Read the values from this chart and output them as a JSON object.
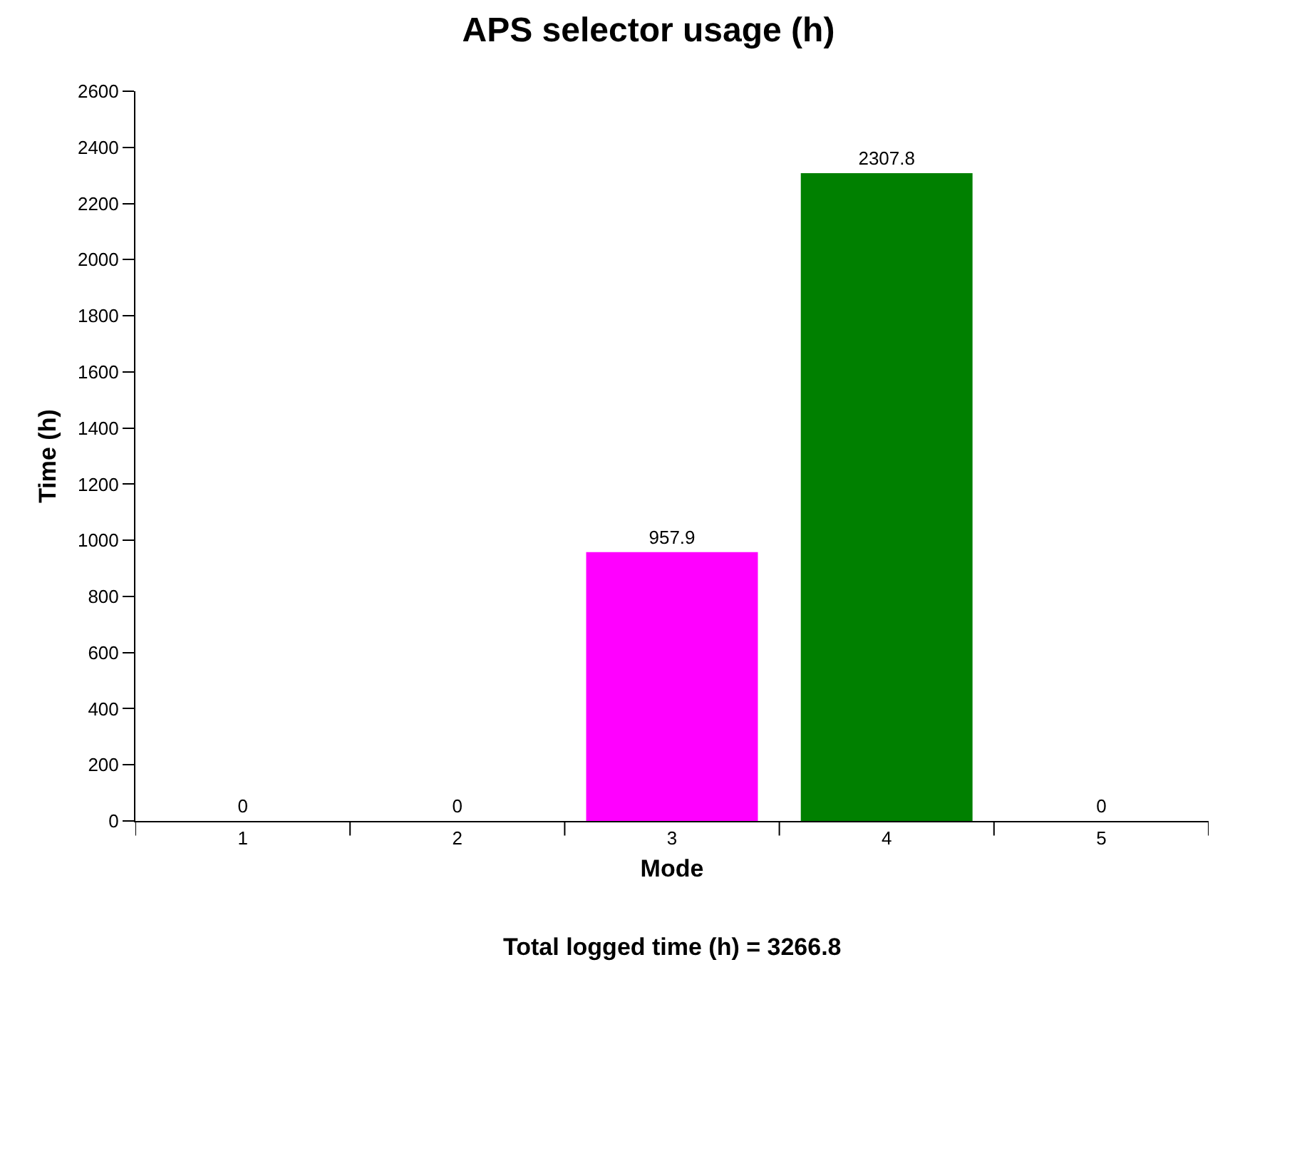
{
  "chart_data": {
    "type": "bar",
    "title": "APS selector usage (h)",
    "xlabel": "Mode",
    "ylabel": "Time (h)",
    "categories": [
      "1",
      "2",
      "3",
      "4",
      "5"
    ],
    "values": [
      0,
      0,
      957.9,
      2307.8,
      0
    ],
    "colors": [
      null,
      null,
      "#ff00ff",
      "#008000",
      null
    ],
    "ylim": [
      0,
      2600
    ],
    "yticks": [
      0,
      200,
      400,
      600,
      800,
      1000,
      1200,
      1400,
      1600,
      1800,
      2000,
      2200,
      2400,
      2600
    ],
    "data_labels": true,
    "annotations": [
      "Total logged time (h) = 3266.8"
    ]
  }
}
